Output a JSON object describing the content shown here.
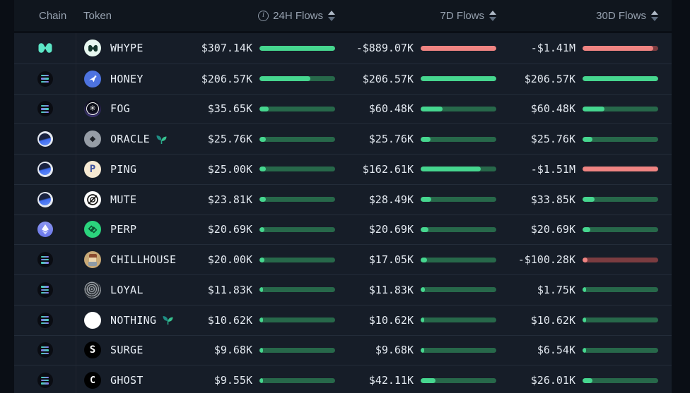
{
  "colors": {
    "bar_fill_positive": "#46d68f",
    "bar_track_positive": "#27684a",
    "bar_fill_negative": "#ef8482",
    "bar_track_negative": "#7b3c40",
    "row_background": "#161d28",
    "page_background": "#0a0e15",
    "header_text": "#97a2b0",
    "value_text": "#e3e9f0"
  },
  "header": {
    "chain_label": "Chain",
    "token_label": "Token",
    "h24_label": "24H Flows",
    "d7_label": "7D Flows",
    "d30_label": "30D Flows",
    "h24_info_icon": "info-icon",
    "sort_icon": "sort-up-down-icon"
  },
  "chart_data": {
    "type": "table",
    "title": "Token flows by chain",
    "columns": [
      "Chain",
      "Token",
      "24H Flows",
      "7D Flows",
      "30D Flows"
    ],
    "rows": [
      {
        "chain": "hyperliquid",
        "token": "WHYPE",
        "sprout": false,
        "h24": {
          "value": "$307.14K",
          "pct": 100,
          "neg": false
        },
        "d7": {
          "value": "-$889.07K",
          "pct": 100,
          "neg": true
        },
        "d30": {
          "value": "-$1.41M",
          "pct": 93,
          "neg": true
        }
      },
      {
        "chain": "solana",
        "token": "HONEY",
        "sprout": false,
        "h24": {
          "value": "$206.57K",
          "pct": 67,
          "neg": false
        },
        "d7": {
          "value": "$206.57K",
          "pct": 100,
          "neg": false
        },
        "d30": {
          "value": "$206.57K",
          "pct": 100,
          "neg": false
        }
      },
      {
        "chain": "solana",
        "token": "FOG",
        "sprout": false,
        "h24": {
          "value": "$35.65K",
          "pct": 12,
          "neg": false
        },
        "d7": {
          "value": "$60.48K",
          "pct": 29,
          "neg": false
        },
        "d30": {
          "value": "$60.48K",
          "pct": 29,
          "neg": false
        }
      },
      {
        "chain": "globe",
        "token": "ORACLE",
        "sprout": true,
        "h24": {
          "value": "$25.76K",
          "pct": 8,
          "neg": false
        },
        "d7": {
          "value": "$25.76K",
          "pct": 13,
          "neg": false
        },
        "d30": {
          "value": "$25.76K",
          "pct": 13,
          "neg": false
        }
      },
      {
        "chain": "globe",
        "token": "PING",
        "sprout": false,
        "h24": {
          "value": "$25.00K",
          "pct": 8,
          "neg": false
        },
        "d7": {
          "value": "$162.61K",
          "pct": 79,
          "neg": false
        },
        "d30": {
          "value": "-$1.51M",
          "pct": 100,
          "neg": true
        }
      },
      {
        "chain": "globe",
        "token": "MUTE",
        "sprout": false,
        "h24": {
          "value": "$23.81K",
          "pct": 8,
          "neg": false
        },
        "d7": {
          "value": "$28.49K",
          "pct": 14,
          "neg": false
        },
        "d30": {
          "value": "$33.85K",
          "pct": 16,
          "neg": false
        }
      },
      {
        "chain": "ethereum",
        "token": "PERP",
        "sprout": false,
        "h24": {
          "value": "$20.69K",
          "pct": 7,
          "neg": false
        },
        "d7": {
          "value": "$20.69K",
          "pct": 10,
          "neg": false
        },
        "d30": {
          "value": "$20.69K",
          "pct": 10,
          "neg": false
        }
      },
      {
        "chain": "solana",
        "token": "CHILLHOUSE",
        "sprout": false,
        "h24": {
          "value": "$20.00K",
          "pct": 7,
          "neg": false
        },
        "d7": {
          "value": "$17.05K",
          "pct": 8,
          "neg": false
        },
        "d30": {
          "value": "-$100.28K",
          "pct": 7,
          "neg": true
        }
      },
      {
        "chain": "solana",
        "token": "LOYAL",
        "sprout": false,
        "h24": {
          "value": "$11.83K",
          "pct": 4,
          "neg": false
        },
        "d7": {
          "value": "$11.83K",
          "pct": 6,
          "neg": false
        },
        "d30": {
          "value": "$1.75K",
          "pct": 1,
          "neg": false
        }
      },
      {
        "chain": "solana",
        "token": "NOTHING",
        "sprout": true,
        "h24": {
          "value": "$10.62K",
          "pct": 4,
          "neg": false
        },
        "d7": {
          "value": "$10.62K",
          "pct": 5,
          "neg": false
        },
        "d30": {
          "value": "$10.62K",
          "pct": 5,
          "neg": false
        }
      },
      {
        "chain": "solana",
        "token": "SURGE",
        "sprout": false,
        "h24": {
          "value": "$9.68K",
          "pct": 3,
          "neg": false
        },
        "d7": {
          "value": "$9.68K",
          "pct": 5,
          "neg": false
        },
        "d30": {
          "value": "$6.54K",
          "pct": 3,
          "neg": false
        }
      },
      {
        "chain": "solana",
        "token": "GHOST",
        "sprout": false,
        "h24": {
          "value": "$9.55K",
          "pct": 3,
          "neg": false
        },
        "d7": {
          "value": "$42.11K",
          "pct": 20,
          "neg": false
        },
        "d30": {
          "value": "$26.01K",
          "pct": 13,
          "neg": false
        }
      }
    ]
  }
}
